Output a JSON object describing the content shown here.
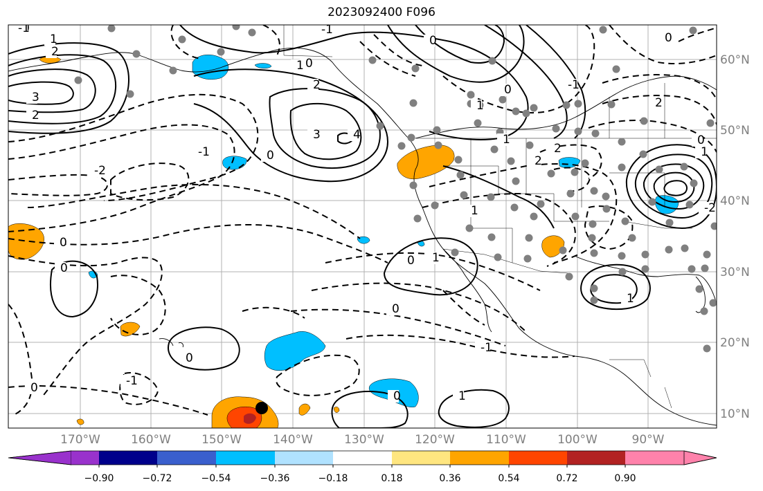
{
  "title": "2023092400 F096",
  "lon_ticks": [
    "170°W",
    "160°W",
    "150°W",
    "140°W",
    "130°W",
    "120°W",
    "110°W",
    "100°W",
    "90°W"
  ],
  "lat_ticks": [
    "60°N",
    "50°N",
    "40°N",
    "30°N",
    "20°N",
    "10°N"
  ],
  "contour_labels": [
    "0",
    "1",
    "2",
    "3",
    "2",
    "-1",
    "0",
    "1",
    "2",
    "3",
    "4",
    "-2",
    "-1",
    "0",
    "1",
    "2",
    "0",
    "0",
    "-1",
    "1",
    "2",
    "0",
    "-2",
    "1",
    "0",
    "1",
    "1",
    "2",
    "0",
    "-1",
    "0",
    "0",
    "0",
    "-1",
    "-1",
    "0",
    "0",
    "1",
    "0",
    "1"
  ],
  "colorbar": {
    "ticks": [
      "−0.90",
      "−0.72",
      "−0.54",
      "−0.36",
      "−0.18",
      "0.18",
      "0.36",
      "0.54",
      "0.72",
      "0.90"
    ],
    "colors": [
      "#9932cc",
      "#00008b",
      "#3a5fcd",
      "#00bfff",
      "#b0e2ff",
      "#ffffff",
      "#ffe680",
      "#ffa500",
      "#ff4500",
      "#b22222",
      "#ff82ab"
    ]
  }
}
